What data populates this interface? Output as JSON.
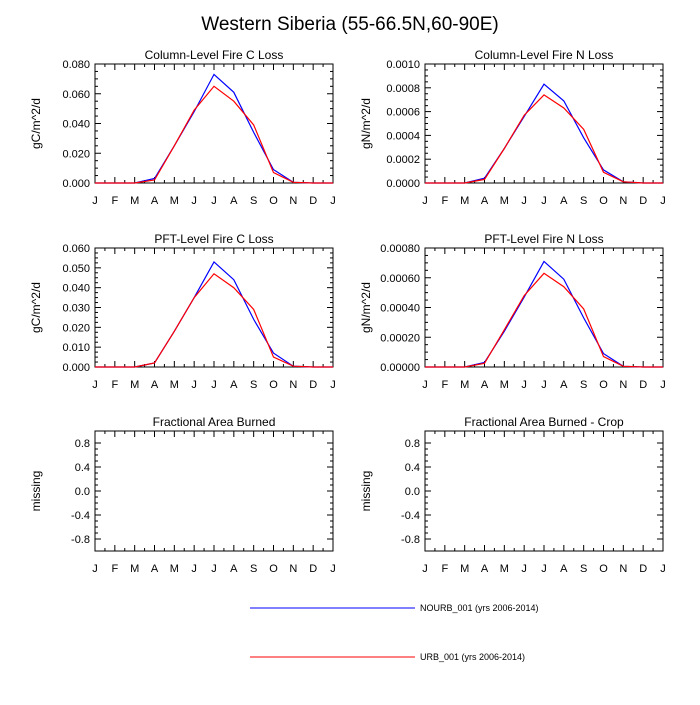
{
  "figure": {
    "title": "Western Siberia (55-66.5N,60-90E)"
  },
  "series": [
    {
      "name": "NOURB_001 (yrs 2006-2014)",
      "color": "#0000ff"
    },
    {
      "name": "URB_001 (yrs 2006-2014)",
      "color": "#ff0000"
    }
  ],
  "chart_data": [
    {
      "type": "line",
      "title": "Column-Level Fire C Loss",
      "ylabel": "gC/m^2/d",
      "x": [
        "J",
        "F",
        "M",
        "A",
        "M",
        "J",
        "J",
        "A",
        "S",
        "O",
        "N",
        "D",
        "J"
      ],
      "ylim": [
        0,
        0.08
      ],
      "yticks": [
        "0.000",
        "0.020",
        "0.040",
        "0.060",
        "0.080"
      ],
      "series": [
        {
          "name": "NOURB_001 (yrs 2006-2014)",
          "values": [
            0,
            0,
            0,
            0.003,
            0.025,
            0.048,
            0.073,
            0.061,
            0.034,
            0.009,
            0.0005,
            0,
            0
          ]
        },
        {
          "name": "URB_001 (yrs 2006-2014)",
          "values": [
            0,
            0,
            0,
            0.002,
            0.025,
            0.049,
            0.065,
            0.055,
            0.039,
            0.007,
            0.0005,
            0,
            0
          ]
        }
      ]
    },
    {
      "type": "line",
      "title": "Column-Level Fire N Loss",
      "ylabel": "gN/m^2/d",
      "x": [
        "J",
        "F",
        "M",
        "A",
        "M",
        "J",
        "J",
        "A",
        "S",
        "O",
        "N",
        "D",
        "J"
      ],
      "ylim": [
        0,
        0.001
      ],
      "yticks": [
        "0.0000",
        "0.0002",
        "0.0004",
        "0.0006",
        "0.0008",
        "0.0010"
      ],
      "series": [
        {
          "name": "NOURB_001 (yrs 2006-2014)",
          "values": [
            0,
            0,
            0,
            4e-05,
            0.00029,
            0.00056,
            0.00083,
            0.00069,
            0.00038,
            0.00011,
            1e-05,
            0,
            0
          ]
        },
        {
          "name": "URB_001 (yrs 2006-2014)",
          "values": [
            0,
            0,
            0,
            3e-05,
            0.00029,
            0.00057,
            0.00074,
            0.00063,
            0.00045,
            9e-05,
            1e-05,
            0,
            0
          ]
        }
      ]
    },
    {
      "type": "line",
      "title": "PFT-Level Fire C Loss",
      "ylabel": "gC/m^2/d",
      "x": [
        "J",
        "F",
        "M",
        "A",
        "M",
        "J",
        "J",
        "A",
        "S",
        "O",
        "N",
        "D",
        "J"
      ],
      "ylim": [
        0,
        0.06
      ],
      "yticks": [
        "0.000",
        "0.010",
        "0.020",
        "0.030",
        "0.040",
        "0.050",
        "0.060"
      ],
      "series": [
        {
          "name": "NOURB_001 (yrs 2006-2014)",
          "values": [
            0,
            0,
            0,
            0.002,
            0.018,
            0.035,
            0.053,
            0.044,
            0.024,
            0.007,
            0.0004,
            0,
            0
          ]
        },
        {
          "name": "URB_001 (yrs 2006-2014)",
          "values": [
            0,
            0,
            0,
            0.002,
            0.018,
            0.035,
            0.047,
            0.04,
            0.029,
            0.005,
            0.0004,
            0,
            0
          ]
        }
      ]
    },
    {
      "type": "line",
      "title": "PFT-Level Fire N Loss",
      "ylabel": "gN/m^2/d",
      "x": [
        "J",
        "F",
        "M",
        "A",
        "M",
        "J",
        "J",
        "A",
        "S",
        "O",
        "N",
        "D",
        "J"
      ],
      "ylim": [
        0,
        0.0008
      ],
      "yticks": [
        "0.00000",
        "0.00020",
        "0.00040",
        "0.00060",
        "0.00080"
      ],
      "series": [
        {
          "name": "NOURB_001 (yrs 2006-2014)",
          "values": [
            0,
            0,
            0,
            3e-05,
            0.00024,
            0.00047,
            0.00071,
            0.00059,
            0.00033,
            9e-05,
            5e-06,
            0,
            0
          ]
        },
        {
          "name": "URB_001 (yrs 2006-2014)",
          "values": [
            0,
            0,
            0,
            2.5e-05,
            0.00025,
            0.00048,
            0.00063,
            0.00054,
            0.00039,
            7e-05,
            5e-06,
            0,
            0
          ]
        }
      ]
    },
    {
      "type": "line",
      "title": "Fractional Area Burned",
      "ylabel": "missing",
      "x": [
        "J",
        "F",
        "M",
        "A",
        "M",
        "J",
        "J",
        "A",
        "S",
        "O",
        "N",
        "D",
        "J"
      ],
      "ylim": [
        -1,
        1
      ],
      "yticks": [
        "-0.8",
        "-0.4",
        "0.0",
        "0.4",
        "0.8"
      ],
      "series": []
    },
    {
      "type": "line",
      "title": "Fractional Area Burned - Crop",
      "ylabel": "missing",
      "x": [
        "J",
        "F",
        "M",
        "A",
        "M",
        "J",
        "J",
        "A",
        "S",
        "O",
        "N",
        "D",
        "J"
      ],
      "ylim": [
        -1,
        1
      ],
      "yticks": [
        "-0.8",
        "-0.4",
        "0.0",
        "0.4",
        "0.8"
      ],
      "series": []
    }
  ]
}
